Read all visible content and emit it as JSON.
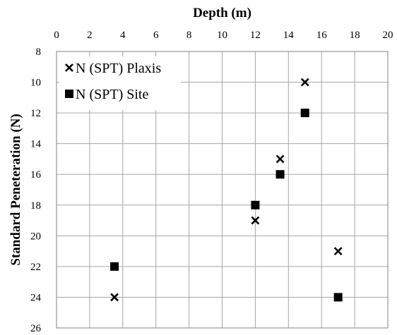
{
  "chart_data": {
    "type": "scatter",
    "xlabel": "Depth (m)",
    "ylabel": "Standard Peneteration (N)",
    "xlim": [
      0,
      20
    ],
    "ylim": [
      8,
      26
    ],
    "x_axis_position": "top",
    "y_axis_reversed": true,
    "grid": true,
    "legend_position": "top-left",
    "x_ticks": [
      "0",
      "2",
      "4",
      "6",
      "8",
      "10",
      "12",
      "14",
      "16",
      "18",
      "20"
    ],
    "y_ticks": [
      "8",
      "10",
      "12",
      "14",
      "16",
      "18",
      "20",
      "22",
      "24",
      "26"
    ],
    "series": [
      {
        "name": "N (SPT) Plaxis",
        "marker": "x",
        "color": "#000000",
        "points": [
          [
            3.5,
            24
          ],
          [
            12,
            19
          ],
          [
            13.5,
            15
          ],
          [
            15,
            10
          ],
          [
            17,
            21
          ]
        ]
      },
      {
        "name": "N (SPT) Site",
        "marker": "square",
        "color": "#000000",
        "points": [
          [
            3.5,
            22
          ],
          [
            12,
            18
          ],
          [
            13.5,
            16
          ],
          [
            15,
            12
          ],
          [
            17,
            24
          ]
        ]
      }
    ]
  }
}
